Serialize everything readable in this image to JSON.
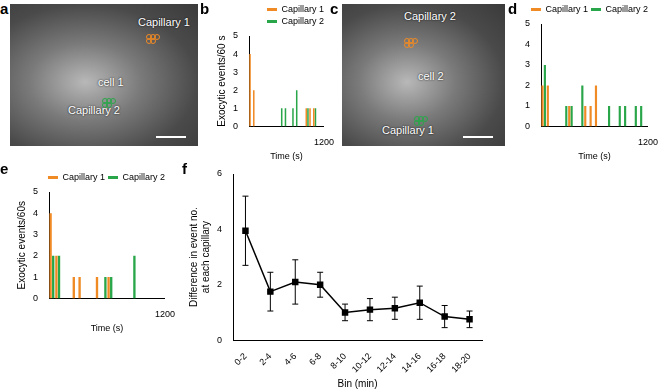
{
  "chart_data": [
    {
      "panel": "b",
      "type": "bar",
      "x": [
        30,
        90,
        150,
        210,
        270,
        330,
        390,
        450,
        510,
        570,
        630,
        690,
        750,
        810,
        870,
        930,
        990,
        1050,
        1110,
        1170
      ],
      "series": [
        {
          "name": "Capillary 1",
          "color": "#f08a24",
          "values": [
            4,
            2,
            0,
            0,
            0,
            0,
            0,
            0,
            0,
            0,
            0,
            0,
            0,
            0,
            0,
            1,
            1,
            1,
            0,
            0
          ]
        },
        {
          "name": "Capillary 2",
          "color": "#2aa64a",
          "values": [
            0,
            0,
            0,
            0,
            0,
            0,
            0,
            0,
            1,
            1,
            0,
            1,
            2,
            0,
            0,
            1,
            0,
            1,
            0,
            0
          ]
        }
      ],
      "xlim": [
        0,
        1200
      ],
      "xticks": [
        1200
      ],
      "ylim": [
        0,
        5
      ],
      "yticks": [
        0,
        1,
        2,
        3,
        4,
        5
      ],
      "x_label": "Time (s)",
      "y_label": "Exocytic events/60 s",
      "legend": "top-right"
    },
    {
      "panel": "d",
      "type": "bar",
      "x": [
        30,
        90,
        150,
        210,
        270,
        330,
        390,
        450,
        510,
        570,
        630,
        690,
        750,
        810,
        870,
        930,
        990,
        1050,
        1110,
        1170
      ],
      "series": [
        {
          "name": "Capillary 1",
          "color": "#f08a24",
          "values": [
            2,
            2,
            0,
            0,
            0,
            1,
            0,
            0,
            1,
            1,
            2,
            0,
            0,
            0,
            0,
            0,
            0,
            0,
            0,
            0
          ]
        },
        {
          "name": "Capillary 2",
          "color": "#2aa64a",
          "values": [
            3,
            0,
            0,
            0,
            1,
            1,
            0,
            2,
            0,
            0,
            0,
            0,
            1,
            0,
            1,
            1,
            0,
            1,
            1,
            0
          ]
        }
      ],
      "xlim": [
        0,
        1200
      ],
      "xticks": [
        1200
      ],
      "ylim": [
        0,
        5
      ],
      "yticks": [
        0,
        1,
        2,
        3,
        4,
        5
      ],
      "x_label": "Time (s)",
      "legend": "top-right"
    },
    {
      "panel": "e",
      "type": "bar",
      "x": [
        30,
        90,
        150,
        210,
        270,
        330,
        390,
        450,
        510,
        570,
        630,
        690,
        750,
        810,
        870,
        930,
        990,
        1050,
        1110,
        1170
      ],
      "series": [
        {
          "name": "Capillary 1",
          "color": "#f08a24",
          "values": [
            4,
            2,
            0,
            0,
            1,
            1,
            0,
            0,
            1,
            0,
            1,
            0,
            0,
            0,
            0,
            0,
            0,
            0,
            0,
            0
          ]
        },
        {
          "name": "Capillary 2",
          "color": "#2aa64a",
          "values": [
            2,
            2,
            0,
            0,
            0,
            0,
            0,
            0,
            0,
            1,
            1,
            0,
            0,
            0,
            2,
            0,
            0,
            0,
            0,
            0
          ]
        }
      ],
      "xlim": [
        0,
        1200
      ],
      "xticks": [
        1200
      ],
      "ylim": [
        0,
        5
      ],
      "yticks": [
        0,
        1,
        2,
        3,
        4,
        5
      ],
      "x_label": "Time (s)",
      "y_label": "Exocytic events/60s",
      "legend": "top-right"
    },
    {
      "panel": "f",
      "type": "line",
      "categories": [
        "0-2",
        "2-4",
        "4-6",
        "6-8",
        "8-10",
        "10-12",
        "12-14",
        "14-16",
        "16-18",
        "18-20"
      ],
      "values": [
        3.95,
        1.75,
        2.1,
        2.0,
        1.0,
        1.1,
        1.15,
        1.35,
        0.85,
        0.75
      ],
      "errors": [
        1.25,
        0.7,
        0.8,
        0.45,
        0.3,
        0.4,
        0.4,
        0.6,
        0.4,
        0.3
      ],
      "color": "#000000",
      "marker": "square",
      "ylim": [
        0,
        6
      ],
      "yticks": [
        0,
        2,
        4,
        6
      ],
      "x_label": "Bin (min)",
      "y_label": [
        "Difference in event no.",
        "at each capillary"
      ]
    }
  ],
  "images": [
    {
      "panel": "a",
      "labels": [
        "Capillary 1",
        "cell 1",
        "Capillary 2"
      ]
    },
    {
      "panel": "c",
      "labels": [
        "Capillary 2",
        "cell 2",
        "Capillary 1"
      ]
    }
  ]
}
